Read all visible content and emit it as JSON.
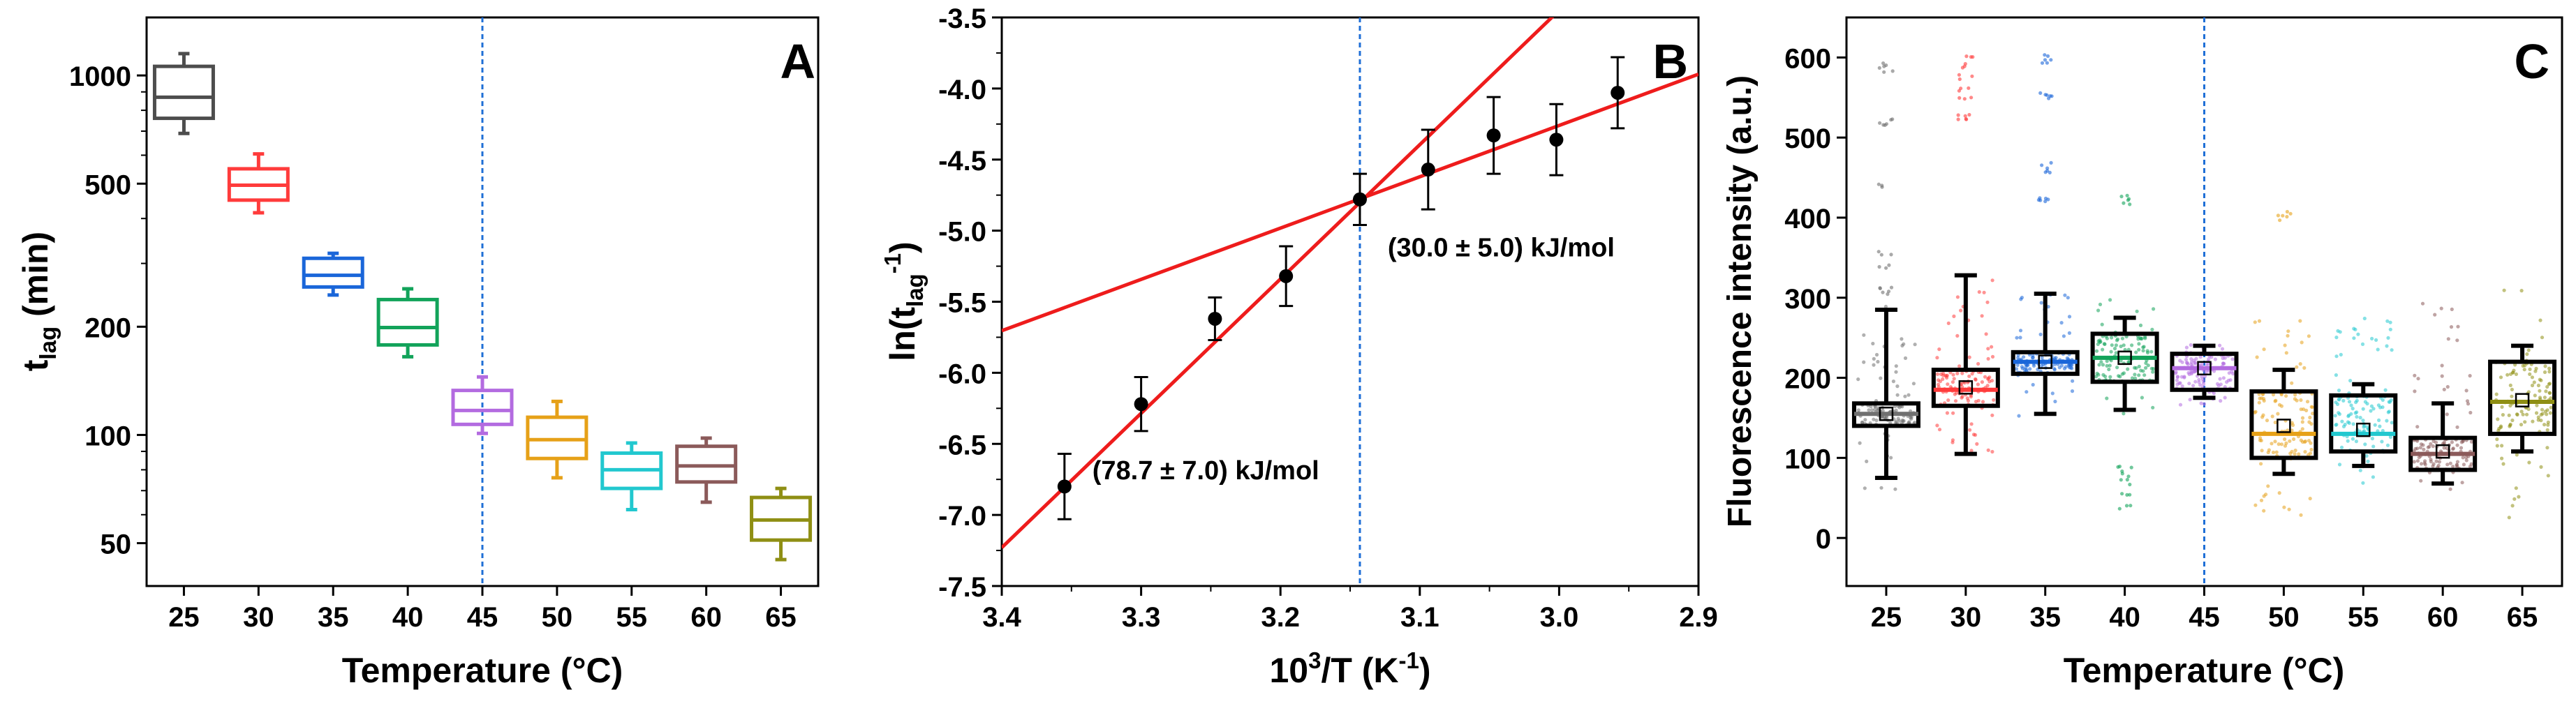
{
  "chart_data": [
    {
      "type": "box",
      "panel_label": "A",
      "xlabel": "Temperature (°C)",
      "ylabel_main": "t",
      "ylabel_sub": "lag",
      "ylabel_unit": " (min)",
      "yscale": "log",
      "ylim": [
        38,
        1450
      ],
      "yticks": [
        50,
        100,
        200,
        500,
        1000
      ],
      "yticklabels": [
        "50",
        "100",
        "200",
        "500",
        "1000"
      ],
      "categories": [
        "25",
        "30",
        "35",
        "40",
        "45",
        "50",
        "55",
        "60",
        "65"
      ],
      "vline_category": "45",
      "boxes": [
        {
          "q1": 760,
          "median": 870,
          "q3": 1060,
          "whisker_low": 690,
          "whisker_high": 1150,
          "color": "#4d4d4d"
        },
        {
          "q1": 450,
          "median": 495,
          "q3": 550,
          "whisker_low": 415,
          "whisker_high": 605,
          "color": "#ff3b3b"
        },
        {
          "q1": 258,
          "median": 278,
          "q3": 310,
          "whisker_low": 245,
          "whisker_high": 320,
          "color": "#1a66d9"
        },
        {
          "q1": 178,
          "median": 199,
          "q3": 238,
          "whisker_low": 165,
          "whisker_high": 255,
          "color": "#12a35a"
        },
        {
          "q1": 107,
          "median": 117,
          "q3": 133,
          "whisker_low": 101,
          "whisker_high": 145,
          "color": "#b36be0"
        },
        {
          "q1": 86,
          "median": 97,
          "q3": 112,
          "whisker_low": 76,
          "whisker_high": 124,
          "color": "#e6a118"
        },
        {
          "q1": 71,
          "median": 80,
          "q3": 89,
          "whisker_low": 62,
          "whisker_high": 95,
          "color": "#22c8cf"
        },
        {
          "q1": 74,
          "median": 82,
          "q3": 93,
          "whisker_low": 65,
          "whisker_high": 98,
          "color": "#8b5a5a"
        },
        {
          "q1": 51,
          "median": 58,
          "q3": 67,
          "whisker_low": 45,
          "whisker_high": 71,
          "color": "#8f8f14"
        }
      ]
    },
    {
      "type": "scatter",
      "panel_label": "B",
      "xlabel_base": "10",
      "xlabel_exp": "3",
      "xlabel_rest": "/T (K",
      "xlabel_unit_exp": "-1",
      "xlabel_close": ")",
      "ylabel_pre": "ln(t",
      "ylabel_sub": "lag",
      "ylabel_exp": "-1",
      "ylabel_close": ")",
      "xlim": [
        3.4,
        2.9
      ],
      "ylim": [
        -7.5,
        -3.5
      ],
      "xticks": [
        3.4,
        3.3,
        3.2,
        3.1,
        3.0,
        2.9
      ],
      "xticklabels": [
        "3.4",
        "3.3",
        "3.2",
        "3.1",
        "3.0",
        "2.9"
      ],
      "yticks": [
        -7.5,
        -7.0,
        -6.5,
        -6.0,
        -5.5,
        -5.0,
        -4.5,
        -4.0,
        -3.5
      ],
      "yticklabels": [
        "-7.5",
        "-7.0",
        "-6.5",
        "-6.0",
        "-5.5",
        "-5.0",
        "-4.5",
        "-4.0",
        "-3.5"
      ],
      "vline_x": 3.143,
      "points": [
        {
          "x": 3.355,
          "y": -6.8,
          "err": 0.23
        },
        {
          "x": 3.3,
          "y": -6.22,
          "err": 0.19
        },
        {
          "x": 3.247,
          "y": -5.62,
          "err": 0.15
        },
        {
          "x": 3.196,
          "y": -5.32,
          "err": 0.21
        },
        {
          "x": 3.143,
          "y": -4.78,
          "err": 0.18
        },
        {
          "x": 3.094,
          "y": -4.57,
          "err": 0.28
        },
        {
          "x": 3.047,
          "y": -4.33,
          "err": 0.27
        },
        {
          "x": 3.002,
          "y": -4.36,
          "err": 0.25
        },
        {
          "x": 2.958,
          "y": -4.03,
          "err": 0.25
        }
      ],
      "fit_lines": [
        {
          "slope": -9.45,
          "intercept": 24.9,
          "label": "(78.7 ± 7.0) kJ/mol",
          "label_x": 3.335,
          "label_y": -6.75
        },
        {
          "slope": -3.61,
          "intercept": 6.57,
          "label": "(30.0 ± 5.0) kJ/mol",
          "label_x": 3.123,
          "label_y": -5.18
        }
      ],
      "line_color": "#ee1c1c"
    },
    {
      "type": "box",
      "panel_label": "C",
      "xlabel": "Temperature (°C)",
      "ylabel": "Fluorescence intensity (a.u.)",
      "ylim": [
        -60,
        650
      ],
      "yticks": [
        0,
        100,
        200,
        300,
        400,
        500,
        600
      ],
      "yticklabels": [
        "0",
        "100",
        "200",
        "300",
        "400",
        "500",
        "600"
      ],
      "categories": [
        "25",
        "30",
        "35",
        "40",
        "45",
        "50",
        "55",
        "60",
        "65"
      ],
      "vline_category": "45",
      "boxes": [
        {
          "q1": 140,
          "median": 155,
          "q3": 168,
          "whisker_low": 75,
          "whisker_high": 285,
          "mean": 155,
          "spread_low": 55,
          "spread_high": 290,
          "outliers": [
            305,
            310,
            340,
            355,
            440,
            515,
            520,
            585,
            590
          ],
          "color": "#707070"
        },
        {
          "q1": 165,
          "median": 185,
          "q3": 210,
          "whisker_low": 105,
          "whisker_high": 328,
          "mean": 188,
          "spread_low": 105,
          "spread_high": 330,
          "outliers": [
            520,
            525,
            550,
            560,
            575,
            590,
            600
          ],
          "color": "#ff3b3b"
        },
        {
          "q1": 205,
          "median": 220,
          "q3": 232,
          "whisker_low": 155,
          "whisker_high": 305,
          "mean": 220,
          "spread_low": 150,
          "spread_high": 310,
          "outliers": [
            420,
            425,
            455,
            465,
            550,
            555,
            595,
            600
          ],
          "color": "#1a66d9"
        },
        {
          "q1": 195,
          "median": 225,
          "q3": 255,
          "whisker_low": 160,
          "whisker_high": 275,
          "mean": 225,
          "spread_low": 150,
          "spread_high": 300,
          "outliers": [
            420,
            425,
            40,
            55,
            70,
            80,
            90
          ],
          "color": "#12a35a"
        },
        {
          "q1": 185,
          "median": 212,
          "q3": 230,
          "whisker_low": 175,
          "whisker_high": 240,
          "mean": 212,
          "spread_low": 165,
          "spread_high": 242,
          "outliers": [],
          "color": "#b36be0"
        },
        {
          "q1": 100,
          "median": 130,
          "q3": 183,
          "whisker_low": 80,
          "whisker_high": 210,
          "mean": 140,
          "spread_low": 25,
          "spread_high": 275,
          "outliers": [
            400,
            405
          ],
          "color": "#e6a118"
        },
        {
          "q1": 108,
          "median": 130,
          "q3": 178,
          "whisker_low": 90,
          "whisker_high": 192,
          "mean": 135,
          "spread_low": 65,
          "spread_high": 280,
          "outliers": [],
          "color": "#22c8cf"
        },
        {
          "q1": 85,
          "median": 105,
          "q3": 125,
          "whisker_low": 68,
          "whisker_high": 168,
          "mean": 108,
          "spread_low": 60,
          "spread_high": 300,
          "outliers": [],
          "color": "#8b5a5a"
        },
        {
          "q1": 130,
          "median": 170,
          "q3": 220,
          "whisker_low": 108,
          "whisker_high": 240,
          "mean": 172,
          "spread_low": 25,
          "spread_high": 310,
          "outliers": [],
          "color": "#8f8f14"
        }
      ]
    }
  ],
  "colors": {
    "axis": "#000000",
    "vline": "#1f6fd6",
    "points": "#000000"
  }
}
